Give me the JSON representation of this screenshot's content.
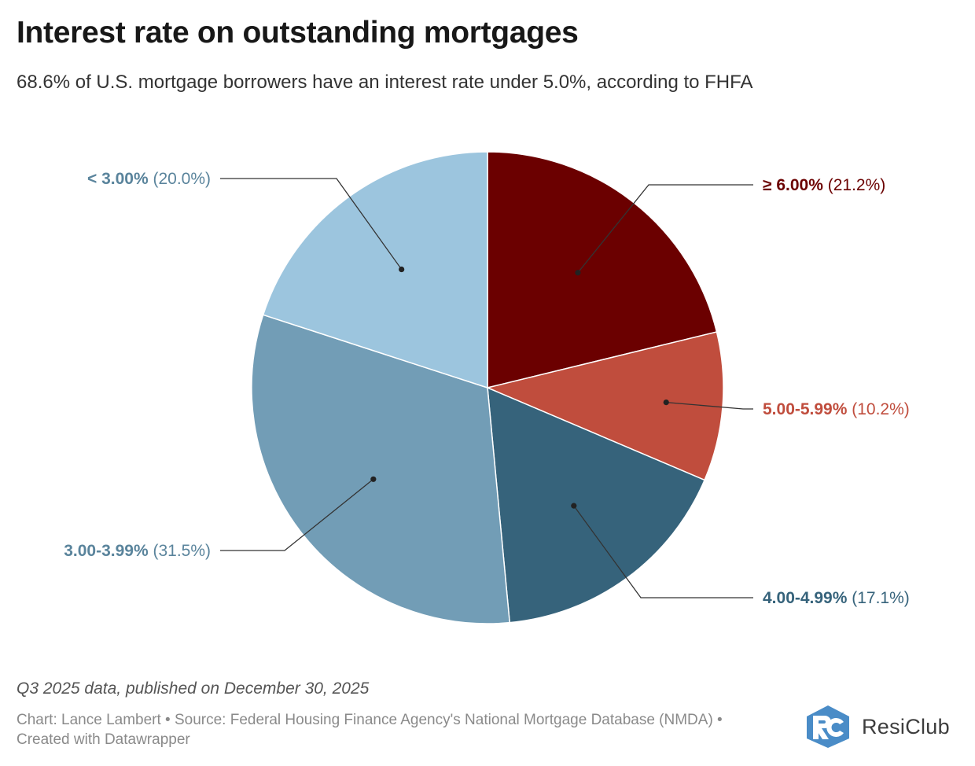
{
  "header": {
    "title": "Interest rate on outstanding mortgages",
    "subtitle": "68.6% of U.S. mortgage borrowers have an interest rate under 5.0%, according to FHFA"
  },
  "chart_data": {
    "type": "pie",
    "slices": [
      {
        "label": "≥ 6.00%",
        "value": 21.2,
        "value_text": "(21.2%)",
        "color": "#6b0000",
        "label_color": "#6b0000"
      },
      {
        "label": "5.00-5.99%",
        "value": 10.2,
        "value_text": "(10.2%)",
        "color": "#c04d3d",
        "label_color": "#c04d3d"
      },
      {
        "label": "4.00-4.99%",
        "value": 17.1,
        "value_text": "(17.1%)",
        "color": "#36637b",
        "label_color": "#36637b"
      },
      {
        "label": "3.00-3.99%",
        "value": 31.5,
        "value_text": "(31.5%)",
        "color": "#729db6",
        "label_color": "#5a849c"
      },
      {
        "label": "< 3.00%",
        "value": 20.0,
        "value_text": "(20.0%)",
        "color": "#9cc5de",
        "label_color": "#5a849c"
      }
    ]
  },
  "footer": {
    "note": "Q3 2025 data, published on December 30, 2025",
    "source": "Chart: Lance Lambert • Source: Federal Housing Finance Agency's National Mortgage Database (NMDA) • Created with Datawrapper",
    "brand": "ResiClub",
    "brand_mark_color": "#4a8cc7"
  }
}
